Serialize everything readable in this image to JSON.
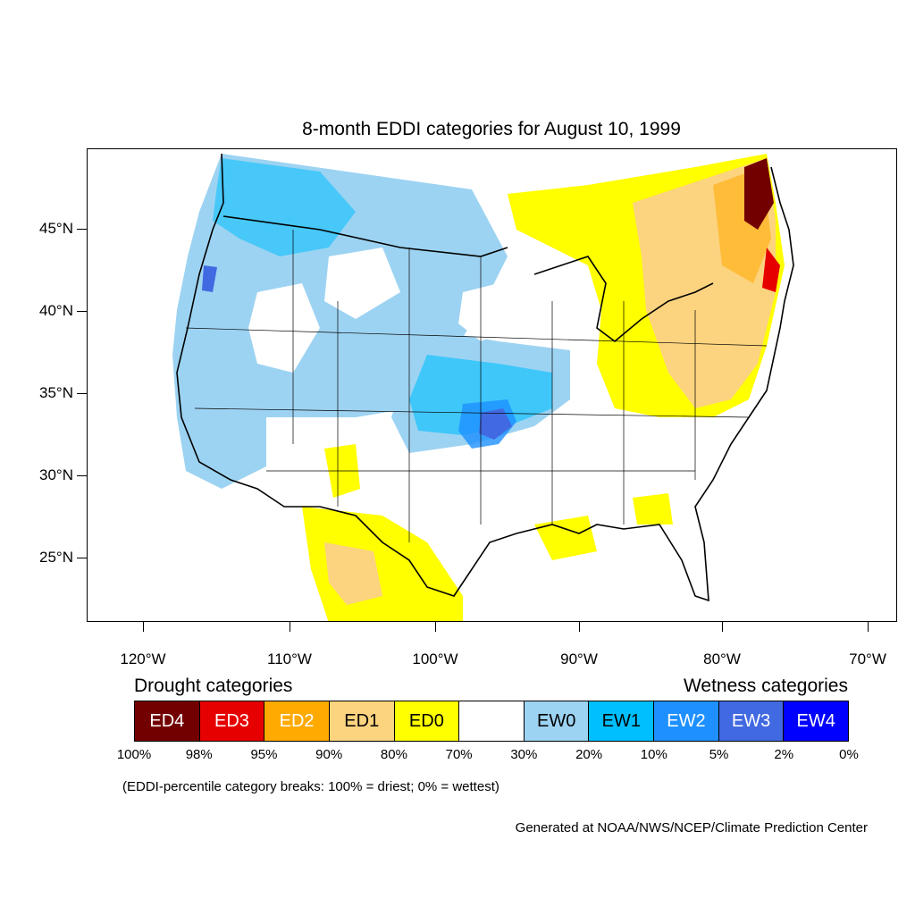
{
  "title": "8-month EDDI categories for August 10, 1999",
  "map": {
    "lat_labels": [
      "45°N",
      "40°N",
      "35°N",
      "30°N",
      "25°N"
    ],
    "lon_labels": [
      "120°W",
      "110°W",
      "100°W",
      "90°W",
      "80°W",
      "70°W"
    ],
    "colors": {
      "coast": "#000000",
      "border": "#000000"
    }
  },
  "legend": {
    "drought_heading": "Drought categories",
    "wetness_heading": "Wetness categories",
    "categories": [
      {
        "label": "ED4",
        "color": "#730000",
        "text_color": "#ffffff"
      },
      {
        "label": "ED3",
        "color": "#e60000",
        "text_color": "#ffffff"
      },
      {
        "label": "ED2",
        "color": "#ffaa00",
        "text_color": "#ffffff"
      },
      {
        "label": "ED1",
        "color": "#fcd37f",
        "text_color": "#000000"
      },
      {
        "label": "ED0",
        "color": "#ffff00",
        "text_color": "#000000"
      },
      {
        "label": "",
        "color": "#ffffff",
        "text_color": "#000000"
      },
      {
        "label": "EW0",
        "color": "#9dd3f2",
        "text_color": "#000000"
      },
      {
        "label": "EW1",
        "color": "#00bfff",
        "text_color": "#000000"
      },
      {
        "label": "EW2",
        "color": "#1e90ff",
        "text_color": "#ffffff"
      },
      {
        "label": "EW3",
        "color": "#4169e1",
        "text_color": "#ffffff"
      },
      {
        "label": "EW4",
        "color": "#0000ff",
        "text_color": "#ffffff"
      }
    ],
    "breaks": [
      "100%",
      "98%",
      "95%",
      "90%",
      "80%",
      "70%",
      "30%",
      "20%",
      "10%",
      "5%",
      "2%",
      "0%"
    ]
  },
  "note": "(EDDI-percentile category breaks: 100% = driest; 0% = wettest)",
  "credit": "Generated at NOAA/NWS/NCEP/Climate Prediction Center"
}
